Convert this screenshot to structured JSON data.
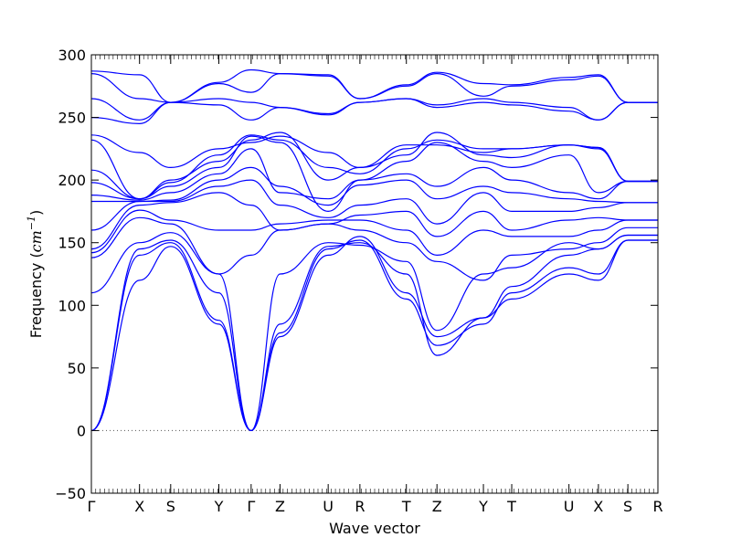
{
  "chart_data": {
    "type": "line",
    "xlabel": "Wave vector",
    "ylabel_text": "Frequency (",
    "ylabel_unit": "cm",
    "ylabel_exp": "−1",
    "ylabel_close": ")",
    "ylim": [
      -50,
      300
    ],
    "yticks": [
      -50,
      0,
      50,
      100,
      150,
      200,
      250,
      300
    ],
    "grid": false,
    "line_color": "#0000ff",
    "zero_line": 0,
    "kpoints": [
      {
        "label": "Γ",
        "x": 0.0
      },
      {
        "label": "X",
        "x": 0.085
      },
      {
        "label": "S",
        "x": 0.14
      },
      {
        "label": "Y",
        "x": 0.225
      },
      {
        "label": "Γ",
        "x": 0.282
      },
      {
        "label": "Z",
        "x": 0.333
      },
      {
        "label": "U",
        "x": 0.418
      },
      {
        "label": "R",
        "x": 0.474
      },
      {
        "label": "T",
        "x": 0.556
      },
      {
        "label": "Z",
        "x": 0.61
      },
      {
        "label": "Y",
        "x": 0.692
      },
      {
        "label": "T",
        "x": 0.742
      },
      {
        "label": "U",
        "x": 0.843
      },
      {
        "label": "X",
        "x": 0.895
      },
      {
        "label": "S",
        "x": 0.947
      },
      {
        "label": "R",
        "x": 1.0
      }
    ],
    "series": [
      {
        "values": [
          0,
          120,
          147,
          85,
          0,
          75,
          140,
          155,
          110,
          75,
          90,
          105,
          125,
          120,
          152,
          152
        ]
      },
      {
        "values": [
          0,
          140,
          150,
          88,
          0,
          78,
          145,
          152,
          105,
          68,
          85,
          110,
          130,
          125,
          152,
          152
        ]
      },
      {
        "values": [
          0,
          145,
          152,
          110,
          0,
          85,
          147,
          150,
          125,
          60,
          90,
          115,
          140,
          145,
          156,
          156
        ]
      },
      {
        "values": [
          110,
          150,
          158,
          125,
          0,
          125,
          150,
          148,
          135,
          80,
          125,
          130,
          150,
          145,
          156,
          156
        ]
      },
      {
        "values": [
          138,
          170,
          165,
          125,
          140,
          160,
          165,
          160,
          150,
          135,
          120,
          140,
          145,
          150,
          162,
          162
        ]
      },
      {
        "values": [
          142,
          176,
          168,
          160,
          160,
          165,
          168,
          168,
          160,
          140,
          160,
          155,
          155,
          160,
          168,
          168
        ]
      },
      {
        "values": [
          145,
          180,
          182,
          190,
          180,
          160,
          165,
          172,
          175,
          155,
          175,
          160,
          168,
          170,
          168,
          168
        ]
      },
      {
        "values": [
          160,
          183,
          183,
          195,
          200,
          180,
          170,
          180,
          185,
          165,
          190,
          175,
          175,
          178,
          182,
          182
        ]
      },
      {
        "values": [
          183,
          183,
          184,
          200,
          210,
          195,
          180,
          196,
          200,
          185,
          195,
          190,
          185,
          183,
          182,
          182
        ]
      },
      {
        "values": [
          188,
          184,
          190,
          205,
          225,
          190,
          185,
          200,
          205,
          195,
          210,
          200,
          190,
          185,
          199,
          199
        ]
      },
      {
        "values": [
          198,
          185,
          195,
          210,
          235,
          230,
          175,
          200,
          215,
          230,
          215,
          210,
          220,
          190,
          199,
          199
        ]
      },
      {
        "values": [
          208,
          185,
          200,
          215,
          232,
          238,
          200,
          210,
          220,
          238,
          220,
          218,
          228,
          225,
          199,
          199
        ]
      },
      {
        "values": [
          232,
          185,
          198,
          220,
          236,
          232,
          210,
          205,
          225,
          232,
          225,
          225,
          228,
          226,
          199,
          199
        ]
      },
      {
        "values": [
          236,
          222,
          210,
          225,
          230,
          235,
          222,
          210,
          228,
          228,
          222,
          225,
          228,
          226,
          199,
          199
        ]
      },
      {
        "values": [
          250,
          245,
          262,
          260,
          248,
          258,
          252,
          262,
          265,
          258,
          262,
          260,
          255,
          248,
          262,
          262
        ]
      },
      {
        "values": [
          265,
          248,
          262,
          265,
          262,
          258,
          253,
          262,
          265,
          260,
          265,
          262,
          258,
          248,
          262,
          262
        ]
      },
      {
        "values": [
          285,
          265,
          262,
          277,
          270,
          285,
          283,
          265,
          275,
          285,
          267,
          275,
          280,
          283,
          262,
          262
        ]
      },
      {
        "values": [
          287,
          284,
          262,
          278,
          288,
          285,
          284,
          265,
          276,
          286,
          277,
          276,
          282,
          284,
          262,
          262
        ]
      }
    ]
  }
}
